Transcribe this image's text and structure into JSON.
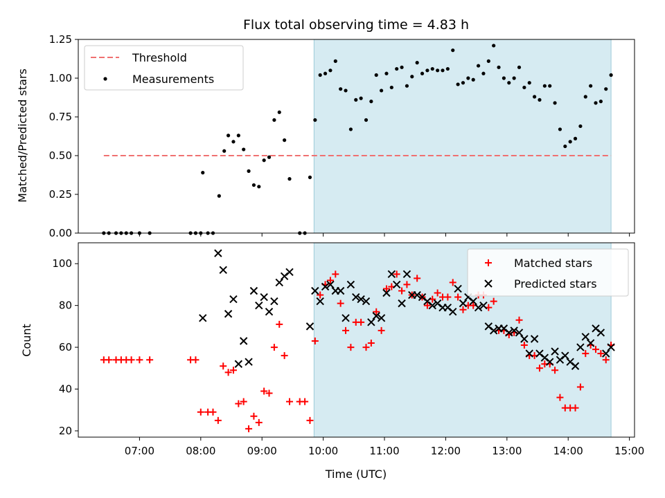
{
  "title": "Flux total observing time = 4.83 h",
  "chart_data": [
    {
      "type": "scatter",
      "panel": "top",
      "ylabel": "Matched/Predicted stars",
      "xlabel": "",
      "xlim": [
        "06:00",
        "15:05"
      ],
      "ylim": [
        0,
        1.25
      ],
      "yticks": [
        "0.00",
        "0.25",
        "0.50",
        "0.75",
        "1.00",
        "1.25"
      ],
      "shaded_interval": [
        "09:51",
        "14:42"
      ],
      "threshold": {
        "name": "Threshold",
        "value": 0.5,
        "from": "06:25",
        "to": "14:42",
        "color": "#f07070"
      },
      "legend": [
        "Threshold",
        "Measurements"
      ],
      "legend_position": "upper left",
      "series": [
        {
          "name": "Measurements",
          "marker": "dot",
          "color": "#000000",
          "points": [
            [
              "06:25",
              0
            ],
            [
              "06:30",
              0
            ],
            [
              "06:37",
              0
            ],
            [
              "06:42",
              0
            ],
            [
              "06:47",
              0
            ],
            [
              "06:52",
              0
            ],
            [
              "07:00",
              0
            ],
            [
              "07:10",
              0
            ],
            [
              "07:50",
              0
            ],
            [
              "07:55",
              0
            ],
            [
              "08:00",
              0
            ],
            [
              "08:07",
              0
            ],
            [
              "08:12",
              0
            ],
            [
              "08:02",
              0.39
            ],
            [
              "08:18",
              0.24
            ],
            [
              "08:23",
              0.53
            ],
            [
              "08:27",
              0.63
            ],
            [
              "08:32",
              0.59
            ],
            [
              "08:37",
              0.63
            ],
            [
              "08:42",
              0.54
            ],
            [
              "08:47",
              0.4
            ],
            [
              "08:52",
              0.31
            ],
            [
              "08:57",
              0.3
            ],
            [
              "09:02",
              0.47
            ],
            [
              "09:07",
              0.49
            ],
            [
              "09:12",
              0.73
            ],
            [
              "09:17",
              0.78
            ],
            [
              "09:22",
              0.6
            ],
            [
              "09:27",
              0.35
            ],
            [
              "09:37",
              0
            ],
            [
              "09:42",
              0
            ],
            [
              "09:47",
              0.36
            ],
            [
              "09:52",
              0.73
            ],
            [
              "09:57",
              1.02
            ],
            [
              "10:02",
              1.03
            ],
            [
              "10:07",
              1.05
            ],
            [
              "10:12",
              1.11
            ],
            [
              "10:17",
              0.93
            ],
            [
              "10:22",
              0.92
            ],
            [
              "10:27",
              0.67
            ],
            [
              "10:32",
              0.86
            ],
            [
              "10:37",
              0.87
            ],
            [
              "10:42",
              0.73
            ],
            [
              "10:47",
              0.85
            ],
            [
              "10:52",
              1.02
            ],
            [
              "10:57",
              0.92
            ],
            [
              "11:02",
              1.03
            ],
            [
              "11:07",
              0.94
            ],
            [
              "11:12",
              1.06
            ],
            [
              "11:17",
              1.07
            ],
            [
              "11:22",
              0.95
            ],
            [
              "11:27",
              1.01
            ],
            [
              "11:32",
              1.1
            ],
            [
              "11:37",
              1.03
            ],
            [
              "11:42",
              1.05
            ],
            [
              "11:47",
              1.06
            ],
            [
              "11:52",
              1.05
            ],
            [
              "11:57",
              1.05
            ],
            [
              "12:02",
              1.06
            ],
            [
              "12:07",
              1.18
            ],
            [
              "12:12",
              0.96
            ],
            [
              "12:17",
              0.97
            ],
            [
              "12:22",
              1.0
            ],
            [
              "12:27",
              0.99
            ],
            [
              "12:32",
              1.08
            ],
            [
              "12:37",
              1.03
            ],
            [
              "12:42",
              1.11
            ],
            [
              "12:47",
              1.21
            ],
            [
              "12:52",
              1.07
            ],
            [
              "12:57",
              1.0
            ],
            [
              "13:02",
              0.97
            ],
            [
              "13:07",
              1.0
            ],
            [
              "13:12",
              1.07
            ],
            [
              "13:17",
              0.94
            ],
            [
              "13:22",
              0.97
            ],
            [
              "13:27",
              0.88
            ],
            [
              "13:32",
              0.86
            ],
            [
              "13:37",
              0.95
            ],
            [
              "13:42",
              0.95
            ],
            [
              "13:47",
              0.84
            ],
            [
              "13:52",
              0.67
            ],
            [
              "13:57",
              0.56
            ],
            [
              "14:02",
              0.59
            ],
            [
              "14:07",
              0.61
            ],
            [
              "14:12",
              0.69
            ],
            [
              "14:17",
              0.88
            ],
            [
              "14:22",
              0.95
            ],
            [
              "14:27",
              0.84
            ],
            [
              "14:32",
              0.85
            ],
            [
              "14:37",
              0.93
            ],
            [
              "14:42",
              1.02
            ]
          ]
        }
      ]
    },
    {
      "type": "scatter",
      "panel": "bottom",
      "ylabel": "Count",
      "xlabel": "Time (UTC)",
      "xlim": [
        "06:00",
        "15:05"
      ],
      "ylim": [
        17,
        110
      ],
      "yticks": [
        "20",
        "40",
        "60",
        "80",
        "100"
      ],
      "xticks": [
        "07:00",
        "08:00",
        "09:00",
        "10:00",
        "11:00",
        "12:00",
        "13:00",
        "14:00",
        "15:00"
      ],
      "shaded_interval": [
        "09:51",
        "14:42"
      ],
      "legend": [
        "Matched stars",
        "Predicted stars"
      ],
      "legend_position": "upper right",
      "series": [
        {
          "name": "Matched stars",
          "marker": "plus",
          "color": "#ff0000",
          "points": [
            [
              "06:25",
              54
            ],
            [
              "06:30",
              54
            ],
            [
              "06:37",
              54
            ],
            [
              "06:42",
              54
            ],
            [
              "06:47",
              54
            ],
            [
              "06:52",
              54
            ],
            [
              "07:00",
              54
            ],
            [
              "07:10",
              54
            ],
            [
              "07:50",
              54
            ],
            [
              "07:55",
              54
            ],
            [
              "08:00",
              29
            ],
            [
              "08:07",
              29
            ],
            [
              "08:12",
              29
            ],
            [
              "08:17",
              25
            ],
            [
              "08:22",
              51
            ],
            [
              "08:27",
              48
            ],
            [
              "08:32",
              49
            ],
            [
              "08:37",
              33
            ],
            [
              "08:42",
              34
            ],
            [
              "08:47",
              21
            ],
            [
              "08:52",
              27
            ],
            [
              "08:57",
              24
            ],
            [
              "09:02",
              39
            ],
            [
              "09:07",
              38
            ],
            [
              "09:12",
              60
            ],
            [
              "09:17",
              71
            ],
            [
              "09:22",
              56
            ],
            [
              "09:27",
              34
            ],
            [
              "09:37",
              34
            ],
            [
              "09:42",
              34
            ],
            [
              "09:47",
              25
            ],
            [
              "09:52",
              63
            ],
            [
              "09:57",
              85
            ],
            [
              "10:02",
              90
            ],
            [
              "10:07",
              92
            ],
            [
              "10:12",
              95
            ],
            [
              "10:17",
              81
            ],
            [
              "10:22",
              68
            ],
            [
              "10:27",
              60
            ],
            [
              "10:32",
              72
            ],
            [
              "10:37",
              72
            ],
            [
              "10:42",
              60
            ],
            [
              "10:47",
              62
            ],
            [
              "10:52",
              77
            ],
            [
              "10:57",
              68
            ],
            [
              "11:02",
              88
            ],
            [
              "11:07",
              89
            ],
            [
              "11:12",
              95
            ],
            [
              "11:17",
              87
            ],
            [
              "11:22",
              90
            ],
            [
              "11:27",
              85
            ],
            [
              "11:32",
              93
            ],
            [
              "11:37",
              84
            ],
            [
              "11:42",
              80
            ],
            [
              "11:47",
              83
            ],
            [
              "11:52",
              86
            ],
            [
              "11:57",
              84
            ],
            [
              "12:02",
              84
            ],
            [
              "12:07",
              91
            ],
            [
              "12:12",
              84
            ],
            [
              "12:17",
              78
            ],
            [
              "12:22",
              80
            ],
            [
              "12:27",
              80
            ],
            [
              "12:32",
              85
            ],
            [
              "12:37",
              85
            ],
            [
              "12:42",
              79
            ],
            [
              "12:47",
              82
            ],
            [
              "12:52",
              68
            ],
            [
              "12:57",
              68
            ],
            [
              "13:02",
              66
            ],
            [
              "13:07",
              67
            ],
            [
              "13:12",
              73
            ],
            [
              "13:17",
              61
            ],
            [
              "13:22",
              56
            ],
            [
              "13:27",
              56
            ],
            [
              "13:32",
              50
            ],
            [
              "13:37",
              52
            ],
            [
              "13:42",
              52
            ],
            [
              "13:47",
              49
            ],
            [
              "13:52",
              36
            ],
            [
              "13:57",
              31
            ],
            [
              "14:02",
              31
            ],
            [
              "14:07",
              31
            ],
            [
              "14:12",
              41
            ],
            [
              "14:17",
              57
            ],
            [
              "14:22",
              61
            ],
            [
              "14:27",
              59
            ],
            [
              "14:32",
              57
            ],
            [
              "14:37",
              54
            ],
            [
              "14:42",
              61
            ]
          ]
        },
        {
          "name": "Predicted stars",
          "marker": "x",
          "color": "#000000",
          "points": [
            [
              "08:02",
              74
            ],
            [
              "08:17",
              105
            ],
            [
              "08:22",
              97
            ],
            [
              "08:27",
              76
            ],
            [
              "08:32",
              83
            ],
            [
              "08:37",
              52
            ],
            [
              "08:42",
              63
            ],
            [
              "08:47",
              53
            ],
            [
              "08:52",
              87
            ],
            [
              "08:57",
              80
            ],
            [
              "09:02",
              84
            ],
            [
              "09:07",
              77
            ],
            [
              "09:12",
              82
            ],
            [
              "09:17",
              91
            ],
            [
              "09:22",
              94
            ],
            [
              "09:27",
              96
            ],
            [
              "09:47",
              70
            ],
            [
              "09:52",
              87
            ],
            [
              "09:57",
              82
            ],
            [
              "10:02",
              89
            ],
            [
              "10:07",
              90
            ],
            [
              "10:12",
              87
            ],
            [
              "10:17",
              87
            ],
            [
              "10:22",
              74
            ],
            [
              "10:27",
              90
            ],
            [
              "10:32",
              84
            ],
            [
              "10:37",
              83
            ],
            [
              "10:42",
              82
            ],
            [
              "10:47",
              72
            ],
            [
              "10:52",
              75
            ],
            [
              "10:57",
              74
            ],
            [
              "11:02",
              86
            ],
            [
              "11:07",
              95
            ],
            [
              "11:12",
              90
            ],
            [
              "11:17",
              81
            ],
            [
              "11:22",
              95
            ],
            [
              "11:27",
              85
            ],
            [
              "11:32",
              85
            ],
            [
              "11:37",
              84
            ],
            [
              "11:42",
              82
            ],
            [
              "11:47",
              80
            ],
            [
              "11:52",
              81
            ],
            [
              "11:57",
              79
            ],
            [
              "12:02",
              79
            ],
            [
              "12:07",
              77
            ],
            [
              "12:12",
              88
            ],
            [
              "12:17",
              81
            ],
            [
              "12:22",
              84
            ],
            [
              "12:27",
              82
            ],
            [
              "12:32",
              79
            ],
            [
              "12:37",
              80
            ],
            [
              "12:42",
              70
            ],
            [
              "12:47",
              68
            ],
            [
              "12:52",
              69
            ],
            [
              "12:57",
              69
            ],
            [
              "13:02",
              67
            ],
            [
              "13:07",
              68
            ],
            [
              "13:12",
              67
            ],
            [
              "13:17",
              64
            ],
            [
              "13:22",
              57
            ],
            [
              "13:27",
              64
            ],
            [
              "13:32",
              57
            ],
            [
              "13:37",
              55
            ],
            [
              "13:42",
              53
            ],
            [
              "13:47",
              58
            ],
            [
              "13:52",
              54
            ],
            [
              "13:57",
              56
            ],
            [
              "14:02",
              53
            ],
            [
              "14:07",
              51
            ],
            [
              "14:12",
              60
            ],
            [
              "14:17",
              65
            ],
            [
              "14:22",
              62
            ],
            [
              "14:27",
              69
            ],
            [
              "14:32",
              67
            ],
            [
              "14:37",
              57
            ],
            [
              "14:42",
              60
            ]
          ]
        }
      ]
    }
  ]
}
